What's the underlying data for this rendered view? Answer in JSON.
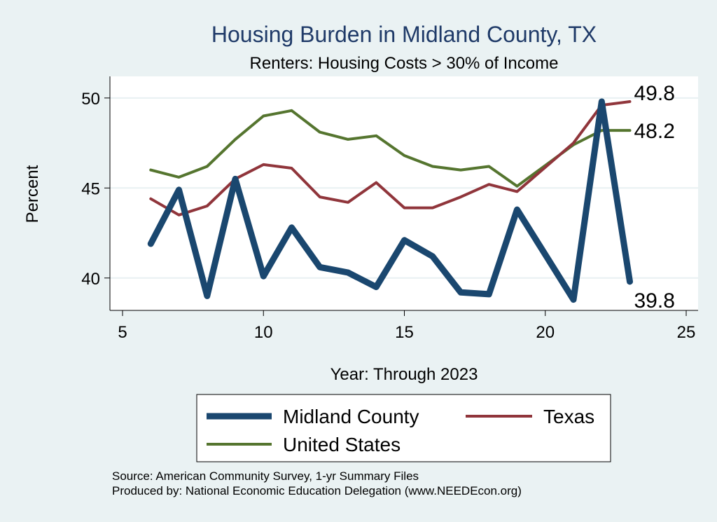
{
  "chart_data": {
    "type": "line",
    "title": "Housing Burden in Midland County, TX",
    "subtitle": "Renters: Housing Costs > 30% of Income",
    "xlabel": "Year: Through 2023",
    "ylabel": "Percent",
    "xlim": [
      5,
      25
    ],
    "ylim": [
      38.2,
      51.2
    ],
    "xticks": [
      5,
      10,
      15,
      20,
      25
    ],
    "yticks": [
      40,
      45,
      50
    ],
    "grid": "horizontal",
    "series": [
      {
        "name": "Midland County",
        "color": "#1a476f",
        "width": 9,
        "x": [
          6,
          7,
          8,
          9,
          10,
          11,
          12,
          13,
          14,
          15,
          16,
          17,
          18,
          19,
          21,
          22,
          23
        ],
        "y": [
          41.9,
          44.9,
          39.0,
          45.5,
          40.1,
          42.8,
          40.6,
          40.3,
          39.5,
          42.1,
          41.2,
          39.2,
          39.1,
          43.8,
          38.8,
          49.8,
          39.8
        ],
        "end_label": "39.8"
      },
      {
        "name": "Texas",
        "color": "#90353b",
        "width": 4,
        "x": [
          6,
          7,
          8,
          9,
          10,
          11,
          12,
          13,
          14,
          15,
          16,
          17,
          18,
          19,
          21,
          22,
          23
        ],
        "y": [
          44.4,
          43.5,
          44.0,
          45.5,
          46.3,
          46.1,
          44.5,
          44.2,
          45.3,
          43.9,
          43.9,
          44.5,
          45.2,
          44.8,
          47.5,
          49.6,
          49.8
        ],
        "end_label": "49.8"
      },
      {
        "name": "United States",
        "color": "#55752f",
        "width": 4,
        "x": [
          6,
          7,
          8,
          9,
          10,
          11,
          12,
          13,
          14,
          15,
          16,
          17,
          18,
          19,
          21,
          22,
          23
        ],
        "y": [
          46.0,
          45.6,
          46.2,
          47.7,
          49.0,
          49.3,
          48.1,
          47.7,
          47.9,
          46.8,
          46.2,
          46.0,
          46.2,
          45.1,
          47.4,
          48.2,
          48.2
        ],
        "end_label": "48.2"
      }
    ],
    "legend_position": "bottom"
  },
  "source_line1": "Source: American Community Survey, 1-yr Summary Files",
  "source_line2": "Produced by: National Economic Education Delegation (www.NEEDEcon.org)"
}
